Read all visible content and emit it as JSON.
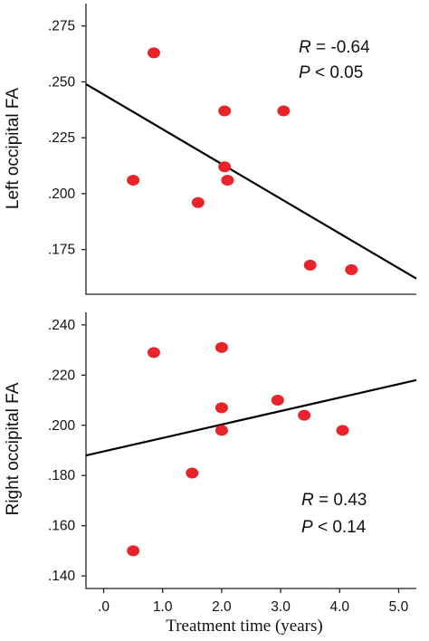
{
  "chart_data": [
    {
      "type": "scatter",
      "ylabel": "Left occipital FA",
      "xlim": [
        -0.3,
        5.3
      ],
      "ylim": [
        0.155,
        0.285
      ],
      "yticks": [
        {
          "value": 0.175,
          "label": ".175"
        },
        {
          "value": 0.2,
          "label": ".200"
        },
        {
          "value": 0.225,
          "label": ".225"
        },
        {
          "value": 0.25,
          "label": ".250"
        },
        {
          "value": 0.275,
          "label": ".275"
        }
      ],
      "grid": false,
      "points": [
        {
          "x": 0.5,
          "y": 0.206
        },
        {
          "x": 0.85,
          "y": 0.263
        },
        {
          "x": 1.6,
          "y": 0.196
        },
        {
          "x": 2.05,
          "y": 0.237
        },
        {
          "x": 2.05,
          "y": 0.212
        },
        {
          "x": 2.1,
          "y": 0.206
        },
        {
          "x": 3.05,
          "y": 0.237
        },
        {
          "x": 3.5,
          "y": 0.168
        },
        {
          "x": 4.2,
          "y": 0.166
        }
      ],
      "fit_line": {
        "x": [
          -0.3,
          5.3
        ],
        "y": [
          0.249,
          0.162
        ]
      },
      "annotation": {
        "r_label": "R",
        "r_value": " = -0.64",
        "p_label": "P",
        "p_value": " < 0.05"
      }
    },
    {
      "type": "scatter",
      "ylabel": "Right occipital FA",
      "xlabel": "Treatment time (years)",
      "xlim": [
        -0.3,
        5.3
      ],
      "ylim": [
        0.135,
        0.245
      ],
      "xticks": [
        {
          "value": 0,
          "label": ".0"
        },
        {
          "value": 1,
          "label": "1.0"
        },
        {
          "value": 2,
          "label": "2.0"
        },
        {
          "value": 3,
          "label": "3.0"
        },
        {
          "value": 4,
          "label": "4.0"
        },
        {
          "value": 5,
          "label": "5.0"
        }
      ],
      "yticks": [
        {
          "value": 0.14,
          "label": ".140"
        },
        {
          "value": 0.16,
          "label": ".160"
        },
        {
          "value": 0.18,
          "label": ".180"
        },
        {
          "value": 0.2,
          "label": ".200"
        },
        {
          "value": 0.22,
          "label": ".220"
        },
        {
          "value": 0.24,
          "label": ".240"
        }
      ],
      "grid": false,
      "points": [
        {
          "x": 0.5,
          "y": 0.15
        },
        {
          "x": 0.85,
          "y": 0.229
        },
        {
          "x": 1.5,
          "y": 0.181
        },
        {
          "x": 2.0,
          "y": 0.231
        },
        {
          "x": 2.0,
          "y": 0.207
        },
        {
          "x": 2.0,
          "y": 0.198
        },
        {
          "x": 2.95,
          "y": 0.21
        },
        {
          "x": 3.4,
          "y": 0.204
        },
        {
          "x": 4.05,
          "y": 0.198
        }
      ],
      "fit_line": {
        "x": [
          -0.3,
          5.3
        ],
        "y": [
          0.188,
          0.218
        ]
      },
      "annotation": {
        "r_label": "R",
        "r_value": " = 0.43",
        "p_label": "P",
        "p_value": " < 0.14"
      }
    }
  ]
}
